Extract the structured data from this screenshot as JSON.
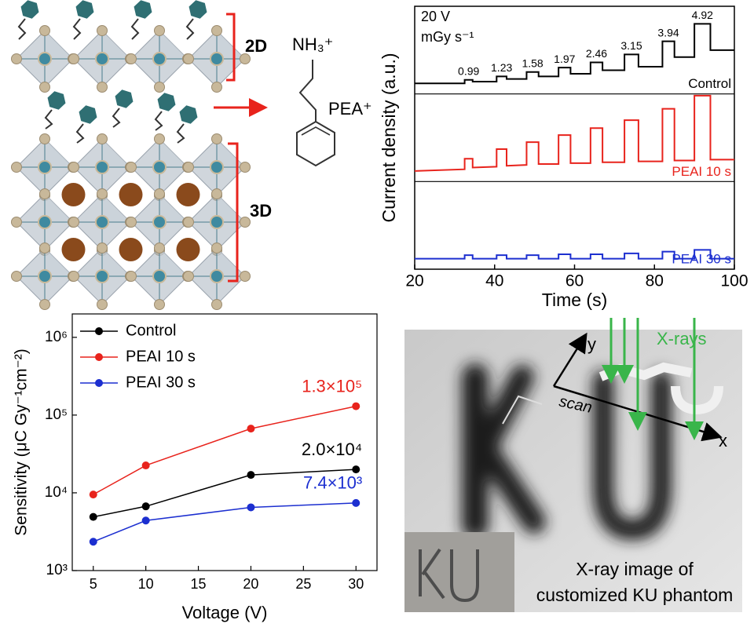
{
  "diagram": {
    "label_2d": "2D",
    "label_3d": "3D",
    "cation": "NH₃⁺",
    "molecule": "PEA⁺"
  },
  "chart_data": [
    {
      "type": "line",
      "stacked_panels": true,
      "xlabel": "Time (s)",
      "ylabel": "Current density (a.u.)",
      "bias": "20 V",
      "dose_unit": "mGy s⁻¹",
      "dose_labels": [
        0.99,
        1.23,
        1.58,
        1.97,
        2.46,
        3.15,
        3.94,
        4.92
      ],
      "xlim": [
        20,
        100
      ],
      "xticks": [
        20,
        40,
        60,
        80,
        100
      ],
      "ylim": [
        0,
        1
      ],
      "x": [
        20,
        32.5,
        32.5,
        34.5,
        34.5,
        40.5,
        40.5,
        43,
        43,
        48,
        48,
        51,
        51,
        56,
        56,
        59,
        59,
        64,
        64,
        67,
        67,
        72.5,
        72.5,
        76,
        76,
        82,
        82,
        85,
        85,
        90,
        90,
        94,
        94,
        100
      ],
      "series": [
        {
          "name": "Control",
          "color": "#000000",
          "values": [
            0.12,
            0.12,
            0.16,
            0.16,
            0.14,
            0.14,
            0.2,
            0.2,
            0.17,
            0.17,
            0.25,
            0.25,
            0.2,
            0.2,
            0.3,
            0.3,
            0.23,
            0.23,
            0.36,
            0.36,
            0.27,
            0.27,
            0.45,
            0.45,
            0.31,
            0.31,
            0.6,
            0.6,
            0.42,
            0.42,
            0.8,
            0.8,
            0.5,
            0.5
          ]
        },
        {
          "name": "PEAI 10 s",
          "color": "#e8231c",
          "values": [
            0.12,
            0.14,
            0.26,
            0.26,
            0.16,
            0.17,
            0.37,
            0.37,
            0.18,
            0.19,
            0.45,
            0.45,
            0.2,
            0.2,
            0.53,
            0.53,
            0.21,
            0.21,
            0.61,
            0.61,
            0.22,
            0.22,
            0.7,
            0.7,
            0.23,
            0.23,
            0.83,
            0.83,
            0.24,
            0.24,
            0.98,
            0.98,
            0.25,
            0.25
          ]
        },
        {
          "name": "PEAI 30 s",
          "color": "#1c2fd0",
          "values": [
            0.12,
            0.12,
            0.16,
            0.16,
            0.12,
            0.12,
            0.16,
            0.16,
            0.12,
            0.12,
            0.16,
            0.16,
            0.12,
            0.12,
            0.17,
            0.17,
            0.12,
            0.12,
            0.17,
            0.17,
            0.12,
            0.12,
            0.18,
            0.18,
            0.12,
            0.12,
            0.2,
            0.2,
            0.12,
            0.12,
            0.22,
            0.22,
            0.12,
            0.12
          ]
        }
      ]
    },
    {
      "type": "line",
      "log_y": true,
      "legend": "upper left",
      "xlabel": "Voltage (V)",
      "ylabel": "Sensitivity (μC Gy⁻¹cm⁻²)",
      "xlim": [
        3,
        32
      ],
      "xticks": [
        5,
        10,
        15,
        20,
        25,
        30
      ],
      "ylim": [
        1000,
        2000000
      ],
      "yticks": [
        {
          "value": 1000,
          "label": "10³"
        },
        {
          "value": 10000,
          "label": "10⁴"
        },
        {
          "value": 100000,
          "label": "10⁵"
        },
        {
          "value": 1000000,
          "label": "10⁶"
        }
      ],
      "x": [
        5,
        10,
        20,
        30
      ],
      "series": [
        {
          "name": "Control",
          "color": "#000000",
          "values": [
            4900,
            6700,
            17000,
            20000
          ],
          "value_labels": [
            null,
            null,
            null,
            "2.0×10⁴"
          ]
        },
        {
          "name": "PEAI 10 s",
          "color": "#e8231c",
          "values": [
            9500,
            22500,
            67000,
            130000
          ],
          "value_labels": [
            null,
            null,
            null,
            "1.3×10⁵"
          ]
        },
        {
          "name": "PEAI 30 s",
          "color": "#1c2fd0",
          "values": [
            2350,
            4400,
            6500,
            7400
          ],
          "value_labels": [
            null,
            null,
            null,
            "7.4×10³"
          ]
        }
      ]
    }
  ],
  "image_panel": {
    "axis_y": "y",
    "beam": "X-rays",
    "scan": "scan",
    "axis_x": "x",
    "caption": [
      "X-ray image of",
      "customized KU phantom"
    ]
  }
}
